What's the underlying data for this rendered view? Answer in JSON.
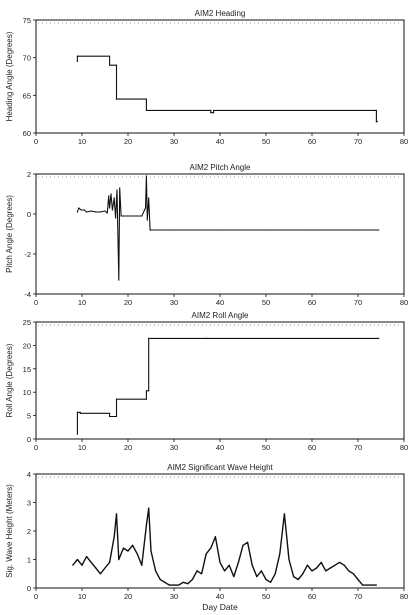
{
  "figure": {
    "xlabel": "Day Date"
  },
  "chart_data": [
    {
      "type": "line",
      "title": "AIM2 Heading",
      "ylabel": "Heading Angle (Degrees)",
      "xlim": [
        0,
        80
      ],
      "ylim": [
        60,
        75
      ],
      "xticks": [
        0,
        10,
        20,
        30,
        40,
        50,
        60,
        70,
        80
      ],
      "yticks": [
        60,
        65,
        70,
        75
      ],
      "series": [
        {
          "x": [
            9,
            9,
            16,
            16,
            17.5,
            17.5,
            24,
            24,
            38,
            38,
            38.6,
            38.6,
            74,
            74,
            74.2
          ],
          "y": [
            69.5,
            70.2,
            70.2,
            69,
            69,
            64.5,
            64.5,
            63,
            63,
            62.7,
            62.7,
            63,
            63,
            61.5,
            61.5
          ]
        }
      ]
    },
    {
      "type": "line",
      "title": "AIM2 Pitch Angle",
      "ylabel": "Pitch Angle (Degrees)",
      "xlim": [
        0,
        80
      ],
      "ylim": [
        -4,
        2
      ],
      "xticks": [
        0,
        10,
        20,
        30,
        40,
        50,
        60,
        70,
        80
      ],
      "yticks": [
        -4,
        -2,
        0,
        2
      ],
      "series": [
        {
          "x": [
            9,
            9.3,
            9.8,
            10.5,
            11,
            12,
            13,
            14,
            15,
            15.5,
            15.8,
            16,
            16.3,
            16.6,
            17,
            17.3,
            17.6,
            18,
            18.2,
            18.5,
            19,
            20,
            21,
            22,
            23,
            23.8,
            24,
            24.2,
            24.5,
            24.8,
            25,
            30,
            40,
            50,
            60,
            70,
            74.5
          ],
          "y": [
            0.1,
            0.3,
            0.2,
            0.2,
            0.1,
            0.15,
            0.1,
            0.1,
            0.15,
            0.05,
            0.9,
            0.3,
            1.0,
            0.2,
            0.8,
            -0.2,
            1.2,
            -3.3,
            1.3,
            -0.1,
            -0.1,
            -0.1,
            -0.1,
            -0.1,
            -0.1,
            0.3,
            1.9,
            -0.3,
            0.8,
            -0.8,
            -0.8,
            -0.8,
            -0.8,
            -0.8,
            -0.8,
            -0.8,
            -0.8
          ]
        }
      ]
    },
    {
      "type": "line",
      "title": "AIM2 Roll Angle",
      "ylabel": "Roll Angle (Degrees)",
      "xlim": [
        0,
        80
      ],
      "ylim": [
        0,
        25
      ],
      "xticks": [
        0,
        10,
        20,
        30,
        40,
        50,
        60,
        70,
        80
      ],
      "yticks": [
        0,
        5,
        10,
        15,
        20,
        25
      ],
      "series": [
        {
          "x": [
            9,
            9,
            9.6,
            9.6,
            16,
            16,
            17.5,
            17.5,
            24,
            24,
            24.5,
            24.5,
            37,
            37,
            74.5
          ],
          "y": [
            1,
            5.7,
            5.7,
            5.5,
            5.5,
            4.8,
            4.8,
            8.5,
            8.5,
            10.3,
            10.3,
            21.5,
            21.5,
            21.5,
            21.5
          ]
        }
      ]
    },
    {
      "type": "line",
      "title": "AIM2 Significant Wave Height",
      "ylabel": "Sig. Wave Height (Meters)",
      "xlim": [
        0,
        80
      ],
      "ylim": [
        0,
        4
      ],
      "xticks": [
        0,
        10,
        20,
        30,
        40,
        50,
        60,
        70,
        80
      ],
      "yticks": [
        0,
        1,
        2,
        3,
        4
      ],
      "series": [
        {
          "x": [
            8,
            9,
            10,
            11,
            12,
            13,
            14,
            15,
            16,
            17,
            17.5,
            18,
            19,
            20,
            21,
            22,
            23,
            24,
            24.5,
            25,
            26,
            27,
            28,
            29,
            30,
            31,
            32,
            33,
            34,
            35,
            36,
            37,
            38,
            39,
            40,
            41,
            42,
            43,
            44,
            45,
            46,
            47,
            48,
            49,
            50,
            51,
            52,
            53,
            54,
            55,
            56,
            57,
            58,
            59,
            60,
            61,
            62,
            63,
            64,
            65,
            66,
            67,
            68,
            69,
            70,
            71,
            72,
            73,
            74
          ],
          "y": [
            0.8,
            1.0,
            0.8,
            1.1,
            0.9,
            0.7,
            0.5,
            0.7,
            0.9,
            1.8,
            2.6,
            1.0,
            1.4,
            1.3,
            1.5,
            1.2,
            0.8,
            2.2,
            2.8,
            1.3,
            0.6,
            0.3,
            0.2,
            0.1,
            0.1,
            0.1,
            0.2,
            0.15,
            0.3,
            0.6,
            0.5,
            1.2,
            1.4,
            1.8,
            0.9,
            0.6,
            0.8,
            0.4,
            0.9,
            1.5,
            1.6,
            0.8,
            0.4,
            0.6,
            0.3,
            0.2,
            0.5,
            1.2,
            2.6,
            1.0,
            0.4,
            0.3,
            0.5,
            0.8,
            0.6,
            0.7,
            0.9,
            0.6,
            0.7,
            0.8,
            0.9,
            0.8,
            0.6,
            0.5,
            0.3,
            0.1,
            0.1,
            0.1,
            0.1
          ]
        }
      ]
    }
  ]
}
